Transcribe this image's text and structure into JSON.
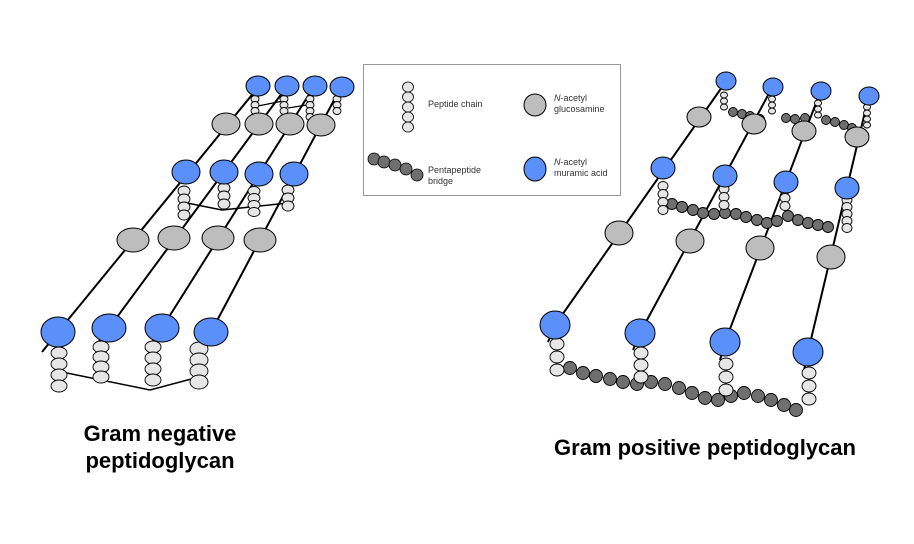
{
  "legend": {
    "peptide_chain": "Peptide chain",
    "nag_italic": "N",
    "nag_rest": "-acetyl",
    "nag_line2": "glucosamine",
    "bridge_line1": "Pentapeptide",
    "bridge_line2": "bridge",
    "nam_italic": "N",
    "nam_rest": "-acetyl",
    "nam_line2": "muramic acid"
  },
  "captions": {
    "gram_negative_line1": "Gram negative",
    "gram_negative_line2": "peptidoglycan",
    "gram_positive": "Gram positive peptidoglycan"
  },
  "colors": {
    "nam": "#5b8ff9",
    "nag": "#bdbdbd",
    "peptide": "#e6e6e6",
    "bridge": "#6f6f6f",
    "line": "#000000"
  }
}
